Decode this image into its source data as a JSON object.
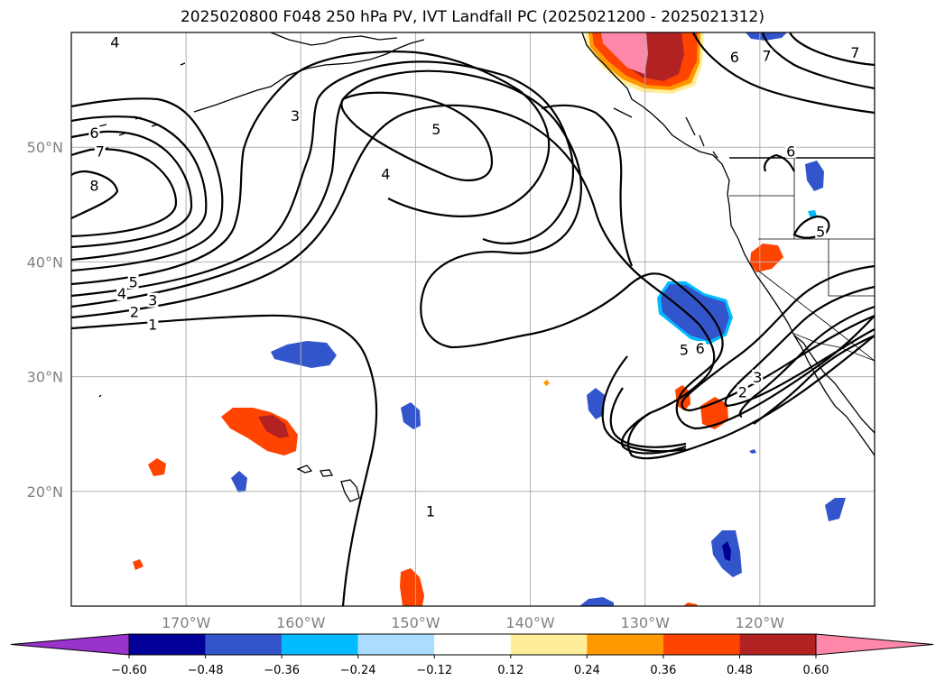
{
  "title": "2025020800 F048 250 hPa PV, IVT Landfall PC (2025021200 - 2025021312)",
  "map": {
    "projection": "PlateCarree",
    "extent": {
      "lon_min": -180,
      "lon_max": -110,
      "lat_min": 10,
      "lat_max": 60
    },
    "lat_ticks": [
      {
        "label": "50°N",
        "value": 50
      },
      {
        "label": "40°N",
        "value": 40
      },
      {
        "label": "30°N",
        "value": 30
      },
      {
        "label": "20°N",
        "value": 20
      }
    ],
    "lon_ticks": [
      {
        "label": "170°W",
        "value": -170
      },
      {
        "label": "160°W",
        "value": -160
      },
      {
        "label": "150°W",
        "value": -150
      },
      {
        "label": "140°W",
        "value": -140
      },
      {
        "label": "130°W",
        "value": -130
      },
      {
        "label": "120°W",
        "value": -120
      }
    ],
    "gridlines": true,
    "grid_color": "#b0b0b0",
    "contour_color": "#000000",
    "coastline_color": "#000000"
  },
  "contour_labels": [
    {
      "text": "4",
      "lon": -176.2,
      "lat": 59.1
    },
    {
      "text": "3",
      "lon": -160.5,
      "lat": 52.7
    },
    {
      "text": "5",
      "lon": -148.2,
      "lat": 51.5
    },
    {
      "text": "4",
      "lon": -152.6,
      "lat": 47.6
    },
    {
      "text": "6",
      "lon": -178.0,
      "lat": 51.2
    },
    {
      "text": "7",
      "lon": -177.5,
      "lat": 49.6
    },
    {
      "text": "8",
      "lon": -178.0,
      "lat": 46.6
    },
    {
      "text": "5",
      "lon": -174.6,
      "lat": 38.2
    },
    {
      "text": "4",
      "lon": -175.6,
      "lat": 37.2
    },
    {
      "text": "3",
      "lon": -172.9,
      "lat": 36.6
    },
    {
      "text": "2",
      "lon": -174.5,
      "lat": 35.6
    },
    {
      "text": "1",
      "lon": -172.9,
      "lat": 34.5
    },
    {
      "text": "1",
      "lon": -148.7,
      "lat": 18.2
    },
    {
      "text": "7",
      "lon": -119.4,
      "lat": 57.9
    },
    {
      "text": "7",
      "lon": -111.7,
      "lat": 58.2
    },
    {
      "text": "6",
      "lon": -122.2,
      "lat": 57.8
    },
    {
      "text": "6",
      "lon": -117.3,
      "lat": 49.6
    },
    {
      "text": "5",
      "lon": -114.7,
      "lat": 42.6
    },
    {
      "text": "5",
      "lon": -126.6,
      "lat": 32.3
    },
    {
      "text": "6",
      "lon": -125.2,
      "lat": 32.4
    },
    {
      "text": "3",
      "lon": -120.2,
      "lat": 29.9
    },
    {
      "text": "2",
      "lon": -121.5,
      "lat": 28.6
    }
  ],
  "colorbar": {
    "ticks": [
      "−0.60",
      "−0.48",
      "−0.36",
      "−0.24",
      "−0.12",
      "0.12",
      "0.24",
      "0.36",
      "0.48",
      "0.60"
    ],
    "colors": [
      "#9933cc",
      "#000099",
      "#3355cc",
      "#00bbff",
      "#aaddff",
      "#ffffff",
      "#ffee99",
      "#ff9900",
      "#ff4400",
      "#b22222",
      "#ff88aa"
    ],
    "extend": "both"
  }
}
